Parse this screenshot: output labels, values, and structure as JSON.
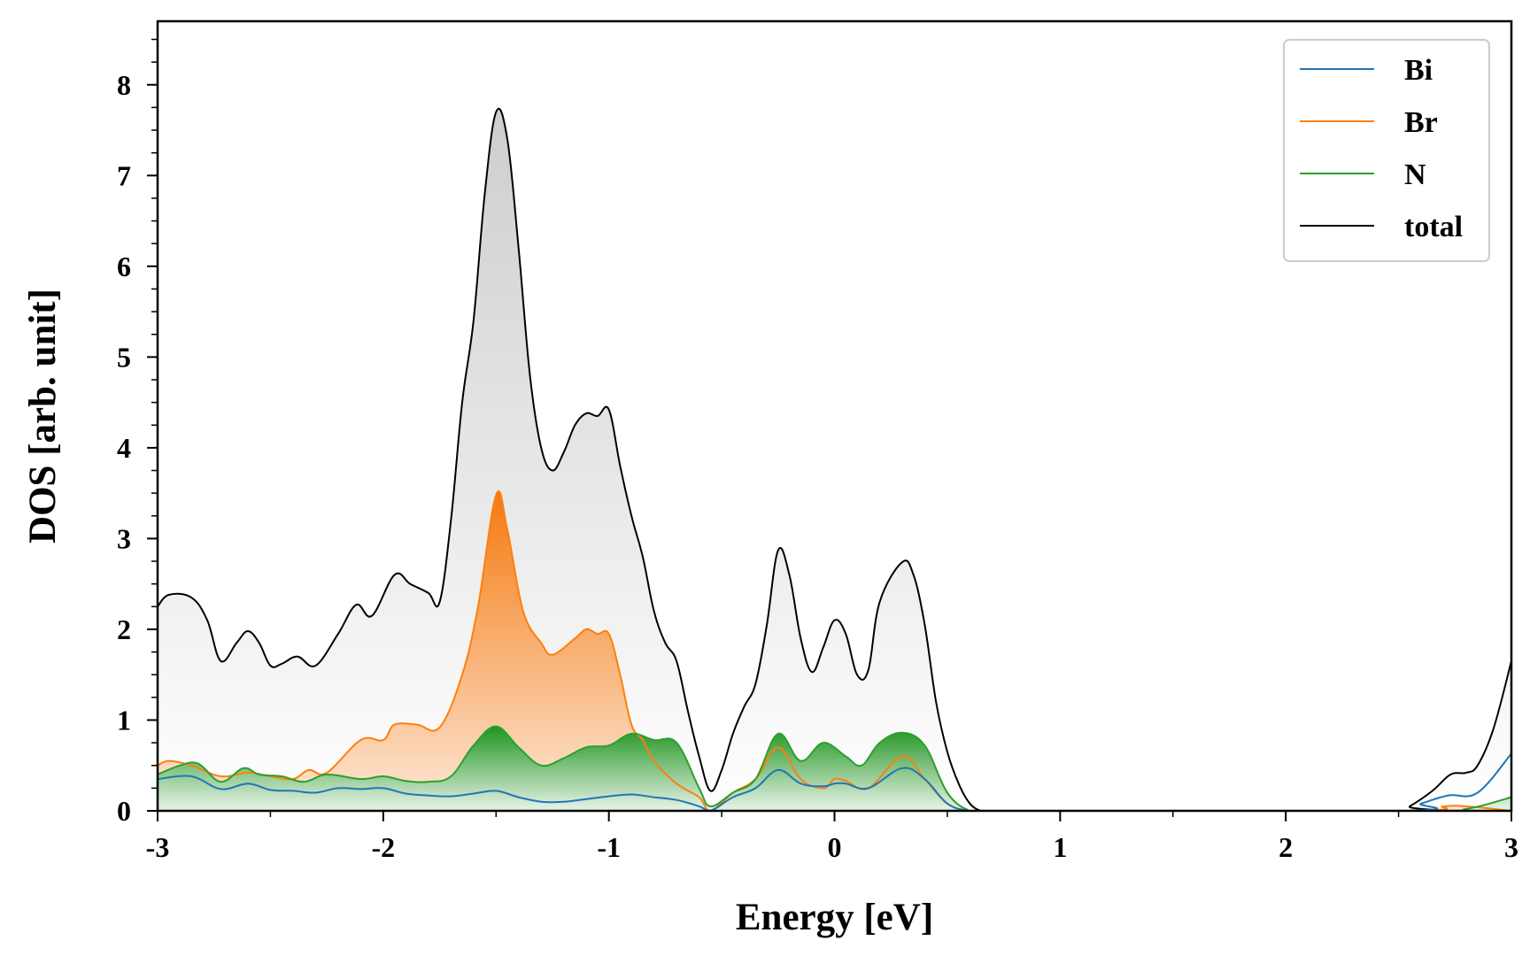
{
  "chart_data": {
    "type": "area",
    "title": "",
    "xlabel": "Energy [eV]",
    "ylabel": "DOS [arb. unit]",
    "xlim": [
      -3,
      3
    ],
    "ylim": [
      0,
      8.7
    ],
    "xticks": [
      -3,
      -2,
      -1,
      0,
      1,
      2,
      3
    ],
    "xtick_labels": [
      "-3",
      "-2",
      "-1",
      "0",
      "1",
      "2",
      "3"
    ],
    "yticks": [
      0,
      1,
      2,
      3,
      4,
      5,
      6,
      7,
      8
    ],
    "ytick_labels": [
      "0",
      "1",
      "2",
      "3",
      "4",
      "5",
      "6",
      "7",
      "8"
    ],
    "legend_position": "top-right",
    "grid": false,
    "series": [
      {
        "name": "Bi",
        "color": "#1f77b4",
        "filled": false,
        "points": [
          [
            -3,
            0.35
          ],
          [
            -2.85,
            0.38
          ],
          [
            -2.72,
            0.24
          ],
          [
            -2.6,
            0.3
          ],
          [
            -2.5,
            0.23
          ],
          [
            -2.4,
            0.22
          ],
          [
            -2.3,
            0.2
          ],
          [
            -2.2,
            0.25
          ],
          [
            -2.1,
            0.24
          ],
          [
            -2.0,
            0.25
          ],
          [
            -1.9,
            0.19
          ],
          [
            -1.8,
            0.17
          ],
          [
            -1.7,
            0.16
          ],
          [
            -1.6,
            0.19
          ],
          [
            -1.5,
            0.22
          ],
          [
            -1.4,
            0.15
          ],
          [
            -1.3,
            0.1
          ],
          [
            -1.2,
            0.1
          ],
          [
            -1.1,
            0.13
          ],
          [
            -1.0,
            0.16
          ],
          [
            -0.9,
            0.18
          ],
          [
            -0.8,
            0.15
          ],
          [
            -0.7,
            0.12
          ],
          [
            -0.6,
            0.05
          ],
          [
            -0.55,
            0.0
          ],
          [
            -0.45,
            0.15
          ],
          [
            -0.35,
            0.25
          ],
          [
            -0.25,
            0.45
          ],
          [
            -0.15,
            0.3
          ],
          [
            -0.05,
            0.27
          ],
          [
            0.0,
            0.3
          ],
          [
            0.05,
            0.3
          ],
          [
            0.15,
            0.25
          ],
          [
            0.3,
            0.47
          ],
          [
            0.4,
            0.35
          ],
          [
            0.5,
            0.08
          ],
          [
            0.6,
            0.0
          ],
          [
            0.7,
            0.0
          ],
          [
            2.5,
            0.0
          ],
          [
            2.6,
            0.08
          ],
          [
            2.72,
            0.17
          ],
          [
            2.85,
            0.2
          ],
          [
            3.0,
            0.63
          ]
        ]
      },
      {
        "name": "Br",
        "color": "#ff7f0e",
        "filled": true,
        "points": [
          [
            -3,
            0.5
          ],
          [
            -2.95,
            0.55
          ],
          [
            -2.85,
            0.5
          ],
          [
            -2.72,
            0.38
          ],
          [
            -2.6,
            0.42
          ],
          [
            -2.5,
            0.38
          ],
          [
            -2.4,
            0.35
          ],
          [
            -2.33,
            0.45
          ],
          [
            -2.25,
            0.42
          ],
          [
            -2.1,
            0.78
          ],
          [
            -2.0,
            0.78
          ],
          [
            -1.95,
            0.95
          ],
          [
            -1.85,
            0.95
          ],
          [
            -1.75,
            0.92
          ],
          [
            -1.65,
            1.5
          ],
          [
            -1.58,
            2.25
          ],
          [
            -1.5,
            3.48
          ],
          [
            -1.45,
            3.1
          ],
          [
            -1.38,
            2.2
          ],
          [
            -1.3,
            1.85
          ],
          [
            -1.25,
            1.72
          ],
          [
            -1.15,
            1.9
          ],
          [
            -1.1,
            2.0
          ],
          [
            -1.05,
            1.95
          ],
          [
            -1.0,
            1.95
          ],
          [
            -0.95,
            1.5
          ],
          [
            -0.9,
            0.95
          ],
          [
            -0.85,
            0.78
          ],
          [
            -0.8,
            0.55
          ],
          [
            -0.7,
            0.3
          ],
          [
            -0.6,
            0.15
          ],
          [
            -0.55,
            0.0
          ],
          [
            -0.45,
            0.2
          ],
          [
            -0.35,
            0.35
          ],
          [
            -0.25,
            0.7
          ],
          [
            -0.15,
            0.35
          ],
          [
            -0.05,
            0.25
          ],
          [
            0.0,
            0.35
          ],
          [
            0.05,
            0.33
          ],
          [
            0.15,
            0.25
          ],
          [
            0.3,
            0.6
          ],
          [
            0.4,
            0.35
          ],
          [
            0.5,
            0.08
          ],
          [
            0.6,
            0.0
          ],
          [
            0.7,
            0.0
          ],
          [
            2.5,
            0.0
          ],
          [
            2.7,
            0.05
          ],
          [
            2.8,
            0.05
          ],
          [
            3.0,
            0.0
          ]
        ]
      },
      {
        "name": "N",
        "color": "#2ca02c",
        "filled": true,
        "points": [
          [
            -3,
            0.4
          ],
          [
            -2.9,
            0.5
          ],
          [
            -2.82,
            0.52
          ],
          [
            -2.72,
            0.32
          ],
          [
            -2.62,
            0.47
          ],
          [
            -2.55,
            0.4
          ],
          [
            -2.45,
            0.38
          ],
          [
            -2.35,
            0.32
          ],
          [
            -2.25,
            0.4
          ],
          [
            -2.1,
            0.35
          ],
          [
            -2.0,
            0.38
          ],
          [
            -1.9,
            0.33
          ],
          [
            -1.8,
            0.32
          ],
          [
            -1.7,
            0.38
          ],
          [
            -1.6,
            0.72
          ],
          [
            -1.5,
            0.93
          ],
          [
            -1.4,
            0.7
          ],
          [
            -1.3,
            0.5
          ],
          [
            -1.2,
            0.58
          ],
          [
            -1.1,
            0.7
          ],
          [
            -1.0,
            0.72
          ],
          [
            -0.9,
            0.85
          ],
          [
            -0.8,
            0.78
          ],
          [
            -0.7,
            0.75
          ],
          [
            -0.6,
            0.25
          ],
          [
            -0.55,
            0.05
          ],
          [
            -0.45,
            0.2
          ],
          [
            -0.35,
            0.35
          ],
          [
            -0.25,
            0.85
          ],
          [
            -0.15,
            0.55
          ],
          [
            -0.05,
            0.75
          ],
          [
            0.05,
            0.6
          ],
          [
            0.12,
            0.5
          ],
          [
            0.2,
            0.75
          ],
          [
            0.3,
            0.86
          ],
          [
            0.4,
            0.72
          ],
          [
            0.5,
            0.2
          ],
          [
            0.6,
            0.0
          ],
          [
            0.7,
            0.0
          ],
          [
            2.6,
            0.0
          ],
          [
            2.8,
            0.02
          ],
          [
            3.0,
            0.15
          ]
        ]
      },
      {
        "name": "total",
        "color": "#000000",
        "filled": true,
        "points": [
          [
            -3,
            2.25
          ],
          [
            -2.95,
            2.38
          ],
          [
            -2.85,
            2.35
          ],
          [
            -2.78,
            2.1
          ],
          [
            -2.72,
            1.65
          ],
          [
            -2.65,
            1.85
          ],
          [
            -2.6,
            1.98
          ],
          [
            -2.55,
            1.85
          ],
          [
            -2.5,
            1.6
          ],
          [
            -2.45,
            1.62
          ],
          [
            -2.38,
            1.7
          ],
          [
            -2.3,
            1.6
          ],
          [
            -2.2,
            1.95
          ],
          [
            -2.12,
            2.27
          ],
          [
            -2.05,
            2.15
          ],
          [
            -1.95,
            2.6
          ],
          [
            -1.88,
            2.5
          ],
          [
            -1.8,
            2.4
          ],
          [
            -1.75,
            2.3
          ],
          [
            -1.7,
            3.2
          ],
          [
            -1.65,
            4.5
          ],
          [
            -1.6,
            5.4
          ],
          [
            -1.55,
            6.8
          ],
          [
            -1.5,
            7.7
          ],
          [
            -1.45,
            7.4
          ],
          [
            -1.4,
            6.2
          ],
          [
            -1.35,
            4.8
          ],
          [
            -1.3,
            4.0
          ],
          [
            -1.25,
            3.75
          ],
          [
            -1.2,
            3.95
          ],
          [
            -1.15,
            4.25
          ],
          [
            -1.1,
            4.38
          ],
          [
            -1.05,
            4.35
          ],
          [
            -1.0,
            4.42
          ],
          [
            -0.95,
            3.8
          ],
          [
            -0.9,
            3.25
          ],
          [
            -0.85,
            2.8
          ],
          [
            -0.8,
            2.2
          ],
          [
            -0.75,
            1.85
          ],
          [
            -0.7,
            1.65
          ],
          [
            -0.65,
            1.1
          ],
          [
            -0.6,
            0.6
          ],
          [
            -0.55,
            0.22
          ],
          [
            -0.5,
            0.45
          ],
          [
            -0.45,
            0.85
          ],
          [
            -0.4,
            1.15
          ],
          [
            -0.35,
            1.4
          ],
          [
            -0.3,
            2.05
          ],
          [
            -0.25,
            2.87
          ],
          [
            -0.2,
            2.6
          ],
          [
            -0.15,
            1.9
          ],
          [
            -0.1,
            1.53
          ],
          [
            -0.05,
            1.8
          ],
          [
            0.0,
            2.1
          ],
          [
            0.05,
            1.95
          ],
          [
            0.1,
            1.5
          ],
          [
            0.15,
            1.55
          ],
          [
            0.2,
            2.3
          ],
          [
            0.3,
            2.74
          ],
          [
            0.35,
            2.6
          ],
          [
            0.4,
            2.05
          ],
          [
            0.45,
            1.2
          ],
          [
            0.5,
            0.65
          ],
          [
            0.55,
            0.3
          ],
          [
            0.6,
            0.08
          ],
          [
            0.65,
            0.0
          ],
          [
            0.7,
            0.0
          ],
          [
            2.5,
            0.0
          ],
          [
            2.55,
            0.05
          ],
          [
            2.65,
            0.22
          ],
          [
            2.73,
            0.4
          ],
          [
            2.8,
            0.42
          ],
          [
            2.85,
            0.5
          ],
          [
            2.92,
            0.9
          ],
          [
            3.0,
            1.65
          ]
        ]
      }
    ]
  }
}
